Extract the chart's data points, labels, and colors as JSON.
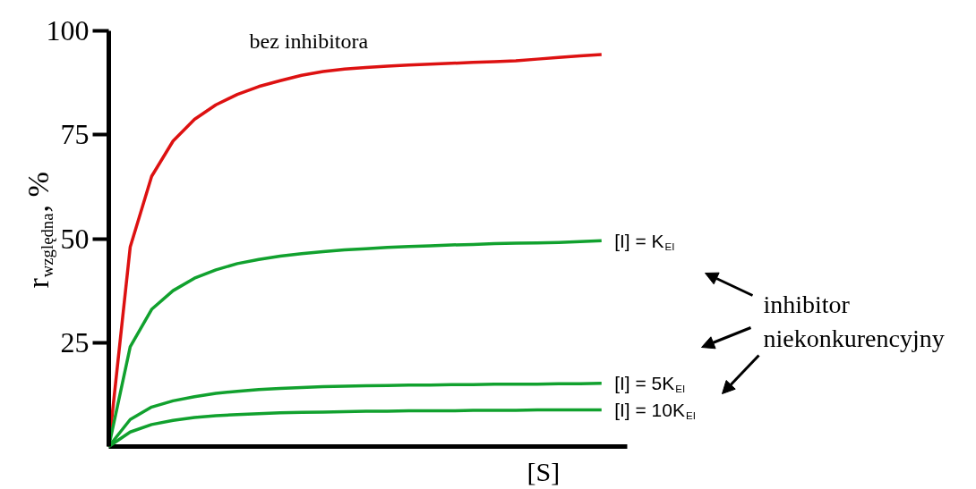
{
  "chart_data": {
    "type": "line",
    "categories": [
      null,
      null,
      null,
      null,
      null,
      null,
      null,
      null,
      null,
      null,
      null,
      null,
      null,
      null,
      null,
      null,
      null,
      null,
      null,
      null,
      null,
      null,
      null,
      null
    ],
    "series": [
      {
        "name": "bez inhibitora",
        "color": "#dd1111",
        "values": [
          0,
          48,
          65,
          73.5,
          78.7,
          82.2,
          84.7,
          86.6,
          88,
          89.3,
          90.2,
          90.8,
          91.2,
          91.5,
          91.8,
          92,
          92.2,
          92.4,
          92.6,
          92.8,
          93.2,
          93.6,
          94,
          94.3
        ]
      },
      {
        "name": "[I] = K$_{EI}$",
        "color": "#11a12e",
        "values": [
          0,
          24,
          33,
          37.5,
          40.5,
          42.5,
          44,
          45,
          45.8,
          46.4,
          46.9,
          47.3,
          47.6,
          47.9,
          48.1,
          48.3,
          48.5,
          48.6,
          48.8,
          48.9,
          49,
          49.1,
          49.3,
          49.5
        ]
      },
      {
        "name": "[I] = 5K$_{EI}$",
        "color": "#11a12e",
        "values": [
          0,
          6.5,
          9.5,
          11,
          12,
          12.8,
          13.3,
          13.7,
          14,
          14.2,
          14.4,
          14.5,
          14.6,
          14.7,
          14.8,
          14.8,
          14.9,
          14.9,
          15,
          15,
          15,
          15.1,
          15.1,
          15.2
        ]
      },
      {
        "name": "[I] = 10K$_{EI}$",
        "color": "#11a12e",
        "values": [
          0,
          3.5,
          5.3,
          6.3,
          7,
          7.4,
          7.7,
          7.9,
          8.1,
          8.2,
          8.3,
          8.4,
          8.5,
          8.5,
          8.6,
          8.6,
          8.6,
          8.7,
          8.7,
          8.7,
          8.8,
          8.8,
          8.8,
          8.8
        ]
      }
    ],
    "xlabel": "[S]",
    "ylabel": "r$_{względna}$, %",
    "ylim": [
      0,
      100
    ],
    "yticks": [
      25,
      50,
      75,
      100
    ],
    "annotations": [
      "inhibitor\nniekonkurencyjny"
    ],
    "grid": false,
    "legend": false,
    "marker": "none",
    "line_style": "solid"
  }
}
